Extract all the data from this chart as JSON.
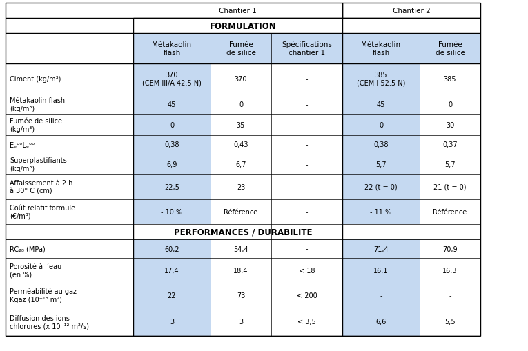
{
  "chantier1_label": "Chantier 1",
  "chantier2_label": "Chantier 2",
  "formulation_label": "FORMULATION",
  "perf_label": "PERFORMANCES / DURABILITE",
  "col_headers": [
    "Métakaolin\nflash",
    "Fumée\nde silice",
    "Spécifications\nchantier 1",
    "Métakaolin\nflash",
    "Fumée\nde silice"
  ],
  "row_labels_formulation": [
    "Ciment (kg/m³)",
    "Métakaolin flash\n(kg/m³)",
    "Fumée de silice\n(kg/m³)",
    "EₑᵒᵒLₑᵒᵒ",
    "Superplastifiants\n(kg/m³)",
    "Affaissement à 2 h\nà 30° C (cm)",
    "Coût relatif formule\n(€/m³)"
  ],
  "row_labels_perf": [
    "RC₂₈ (MPa)",
    "Porosité à l’eau\n(en %)",
    "Perméabilité au gaz\nKgaz (10⁻¹⁸ m²)",
    "Diffusion des ions\nchlorures (x 10⁻¹² m²/s)"
  ],
  "formulation_data": [
    [
      "370\n(CEM III/A 42.5 N)",
      "370",
      "-",
      "385\n(CEM I 52.5 N)",
      "385"
    ],
    [
      "45",
      "0",
      "-",
      "45",
      "0"
    ],
    [
      "0",
      "35",
      "-",
      "0",
      "30"
    ],
    [
      "0,38",
      "0,43",
      "-",
      "0,38",
      "0,37"
    ],
    [
      "6,9",
      "6,7",
      "-",
      "5,7",
      "5,7"
    ],
    [
      "22,5",
      "23",
      "-",
      "22 (t = 0)",
      "21 (t = 0)"
    ],
    [
      "- 10 %",
      "Référence",
      "-",
      "- 11 %",
      "Référence"
    ]
  ],
  "perf_data": [
    [
      "60,2",
      "54,4",
      "-",
      "71,4",
      "70,9"
    ],
    [
      "17,4",
      "18,4",
      "< 18",
      "16,1",
      "16,3"
    ],
    [
      "22",
      "73",
      "< 200",
      "-",
      "-"
    ],
    [
      "3",
      "3",
      "< 3,5",
      "6,6",
      "5,5"
    ]
  ],
  "blue_light": "#c5d9f1",
  "blue_cols": [
    0,
    3
  ],
  "font_size": 7.0,
  "header_font_size": 7.5,
  "section_font_size": 8.5
}
